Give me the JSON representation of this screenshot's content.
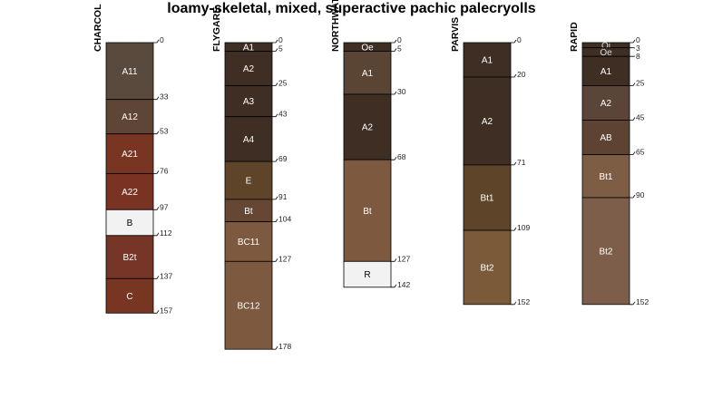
{
  "title": "loamy-skeletal, mixed, superactive pachic palecryolls",
  "profiles": [
    {
      "name": "CHARCOL",
      "horizons": [
        {
          "name": "A11",
          "top": 0,
          "bottom": 33,
          "color": "#5a4a3e",
          "text": "#ffffff"
        },
        {
          "name": "A12",
          "top": 33,
          "bottom": 53,
          "color": "#5e4535",
          "text": "#ffffff"
        },
        {
          "name": "A21",
          "top": 53,
          "bottom": 76,
          "color": "#773522",
          "text": "#ffffff"
        },
        {
          "name": "A22",
          "top": 76,
          "bottom": 97,
          "color": "#7a3322",
          "text": "#ffffff"
        },
        {
          "name": "B",
          "top": 97,
          "bottom": 112,
          "color": "#f2f2f2",
          "text": "#000000"
        },
        {
          "name": "B2t",
          "top": 112,
          "bottom": 137,
          "color": "#773527",
          "text": "#ffffff"
        },
        {
          "name": "C",
          "top": 137,
          "bottom": 157,
          "color": "#773522",
          "text": "#ffffff"
        }
      ],
      "depth_labels": [
        "0",
        "33",
        "53",
        "76",
        "97",
        "112",
        "137",
        "157"
      ]
    },
    {
      "name": "FLYGARE",
      "horizons": [
        {
          "name": "A1",
          "top": 0,
          "bottom": 5,
          "color": "#3e2e24",
          "text": "#ffffff"
        },
        {
          "name": "A2",
          "top": 5,
          "bottom": 25,
          "color": "#3e2e24",
          "text": "#ffffff"
        },
        {
          "name": "A3",
          "top": 25,
          "bottom": 43,
          "color": "#3e2e24",
          "text": "#ffffff"
        },
        {
          "name": "A4",
          "top": 43,
          "bottom": 69,
          "color": "#3e2e24",
          "text": "#ffffff"
        },
        {
          "name": "E",
          "top": 69,
          "bottom": 91,
          "color": "#5e4428",
          "text": "#ffffff"
        },
        {
          "name": "Bt",
          "top": 91,
          "bottom": 104,
          "color": "#654733",
          "text": "#ffffff"
        },
        {
          "name": "BC11",
          "top": 104,
          "bottom": 127,
          "color": "#7d5a3f",
          "text": "#ffffff"
        },
        {
          "name": "BC12",
          "top": 127,
          "bottom": 178,
          "color": "#7d5a3f",
          "text": "#ffffff"
        }
      ],
      "depth_labels": [
        "0",
        "5",
        "25",
        "43",
        "69",
        "91",
        "104",
        "127",
        "178"
      ]
    },
    {
      "name": "NORTHWATER",
      "horizons": [
        {
          "name": "Oe",
          "top": 0,
          "bottom": 5,
          "color": "#3e2e24",
          "text": "#ffffff"
        },
        {
          "name": "A1",
          "top": 5,
          "bottom": 30,
          "color": "#5a4434",
          "text": "#ffffff"
        },
        {
          "name": "A2",
          "top": 30,
          "bottom": 68,
          "color": "#3e2e24",
          "text": "#ffffff"
        },
        {
          "name": "Bt",
          "top": 68,
          "bottom": 127,
          "color": "#7d5a3f",
          "text": "#ffffff"
        },
        {
          "name": "R",
          "top": 127,
          "bottom": 142,
          "color": "#f2f2f2",
          "text": "#000000"
        }
      ],
      "depth_labels": [
        "0",
        "5",
        "30",
        "68",
        "127",
        "142"
      ]
    },
    {
      "name": "PARVIS",
      "horizons": [
        {
          "name": "A1",
          "top": 0,
          "bottom": 20,
          "color": "#3e2e24",
          "text": "#ffffff"
        },
        {
          "name": "A2",
          "top": 20,
          "bottom": 71,
          "color": "#3e2e24",
          "text": "#ffffff"
        },
        {
          "name": "Bt1",
          "top": 71,
          "bottom": 109,
          "color": "#5e4428",
          "text": "#ffffff"
        },
        {
          "name": "Bt2",
          "top": 109,
          "bottom": 152,
          "color": "#7a5a38",
          "text": "#ffffff"
        }
      ],
      "depth_labels": [
        "0",
        "20",
        "71",
        "109",
        "152"
      ]
    },
    {
      "name": "RAPID",
      "horizons": [
        {
          "name": "Oi",
          "top": 0,
          "bottom": 3,
          "color": "#3e2e24",
          "text": "#dddddd"
        },
        {
          "name": "Oe",
          "top": 3,
          "bottom": 8,
          "color": "#3e2e24",
          "text": "#dddddd"
        },
        {
          "name": "A1",
          "top": 8,
          "bottom": 25,
          "color": "#3e2e24",
          "text": "#ffffff"
        },
        {
          "name": "A2",
          "top": 25,
          "bottom": 45,
          "color": "#5a4538",
          "text": "#ffffff"
        },
        {
          "name": "AB",
          "top": 45,
          "bottom": 65,
          "color": "#5e4232",
          "text": "#ffffff"
        },
        {
          "name": "Bt1",
          "top": 65,
          "bottom": 90,
          "color": "#7d5e44",
          "text": "#ffffff"
        },
        {
          "name": "Bt2",
          "top": 90,
          "bottom": 152,
          "color": "#7d5e4a",
          "text": "#ffffff"
        }
      ],
      "depth_labels": [
        "0",
        "3",
        "8",
        "25",
        "45",
        "65",
        "90",
        "152"
      ]
    }
  ]
}
